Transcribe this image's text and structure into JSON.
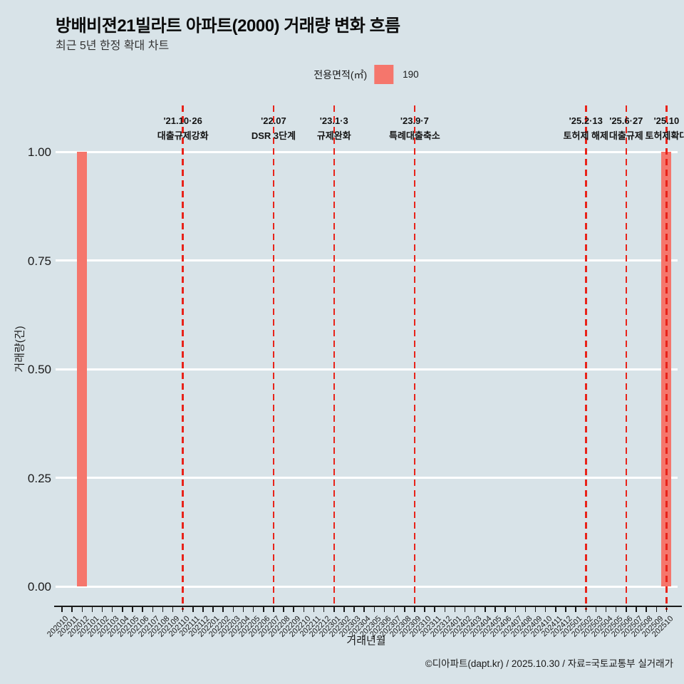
{
  "title": "방배비젼21빌라트 아파트(2000) 거래량 변화 흐름",
  "subtitle": "최근 5년 한정 확대 차트",
  "legend": {
    "title": "전용면적(㎡)",
    "item": "190"
  },
  "footer": "©디아파트(dapt.kr) / 2025.10.30 / 자료=국토교통부 실거래가",
  "colors": {
    "background": "#d8e3e8",
    "bar": "#f5766c",
    "event_line": "#e8231a",
    "gridline": "#ffffff",
    "text": "#111111"
  },
  "chart_data": {
    "type": "bar",
    "title": "방배비젼21빌라트 아파트(2000) 거래량 변화 흐름",
    "subtitle": "최근 5년 한정 확대 차트",
    "xlabel": "거래년월",
    "ylabel": "거래량(건)",
    "ylim": [
      0,
      1.0
    ],
    "grid": true,
    "legend_position": "top-center",
    "series_name": "190",
    "y_ticks": [
      0,
      0.25,
      0.5,
      0.75,
      1
    ],
    "y_tick_labels": [
      "0.00",
      "0.25",
      "0.50",
      "0.75",
      "1.00"
    ],
    "categories": [
      "202010",
      "202011",
      "202012",
      "202101",
      "202102",
      "202103",
      "202104",
      "202105",
      "202106",
      "202107",
      "202108",
      "202109",
      "202110",
      "202111",
      "202112",
      "202201",
      "202202",
      "202203",
      "202204",
      "202205",
      "202206",
      "202207",
      "202208",
      "202209",
      "202210",
      "202211",
      "202212",
      "202301",
      "202302",
      "202303",
      "202304",
      "202305",
      "202306",
      "202307",
      "202308",
      "202309",
      "202310",
      "202311",
      "202312",
      "202401",
      "202402",
      "202403",
      "202404",
      "202405",
      "202406",
      "202407",
      "202408",
      "202409",
      "202410",
      "202411",
      "202412",
      "202501",
      "202502",
      "202503",
      "202504",
      "202505",
      "202506",
      "202507",
      "202508",
      "202509",
      "202510"
    ],
    "values": [
      0,
      0,
      1,
      0,
      0,
      0,
      0,
      0,
      0,
      0,
      0,
      0,
      0,
      0,
      0,
      0,
      0,
      0,
      0,
      0,
      0,
      0,
      0,
      0,
      0,
      0,
      0,
      0,
      0,
      0,
      0,
      0,
      0,
      0,
      0,
      0,
      0,
      0,
      0,
      0,
      0,
      0,
      0,
      0,
      0,
      0,
      0,
      0,
      0,
      0,
      0,
      0,
      0,
      0,
      0,
      0,
      0,
      0,
      0,
      0,
      1
    ],
    "annotations": [
      {
        "month": "202110",
        "date": "'21.10·26",
        "label": "대출규제강화"
      },
      {
        "month": "202207",
        "date": "'22.07",
        "label": "DSR 3단계"
      },
      {
        "month": "202301",
        "date": "'23.1·3",
        "label": "규제완화"
      },
      {
        "month": "202309",
        "date": "'23.9·7",
        "label": "특례대출축소"
      },
      {
        "month": "202502",
        "date": "'25.2·13",
        "label": "토허제 해제"
      },
      {
        "month": "202506",
        "date": "'25.6·27",
        "label": "대출규제"
      },
      {
        "month": "202510",
        "date": "'25.10",
        "label": "토허제확대"
      }
    ]
  }
}
